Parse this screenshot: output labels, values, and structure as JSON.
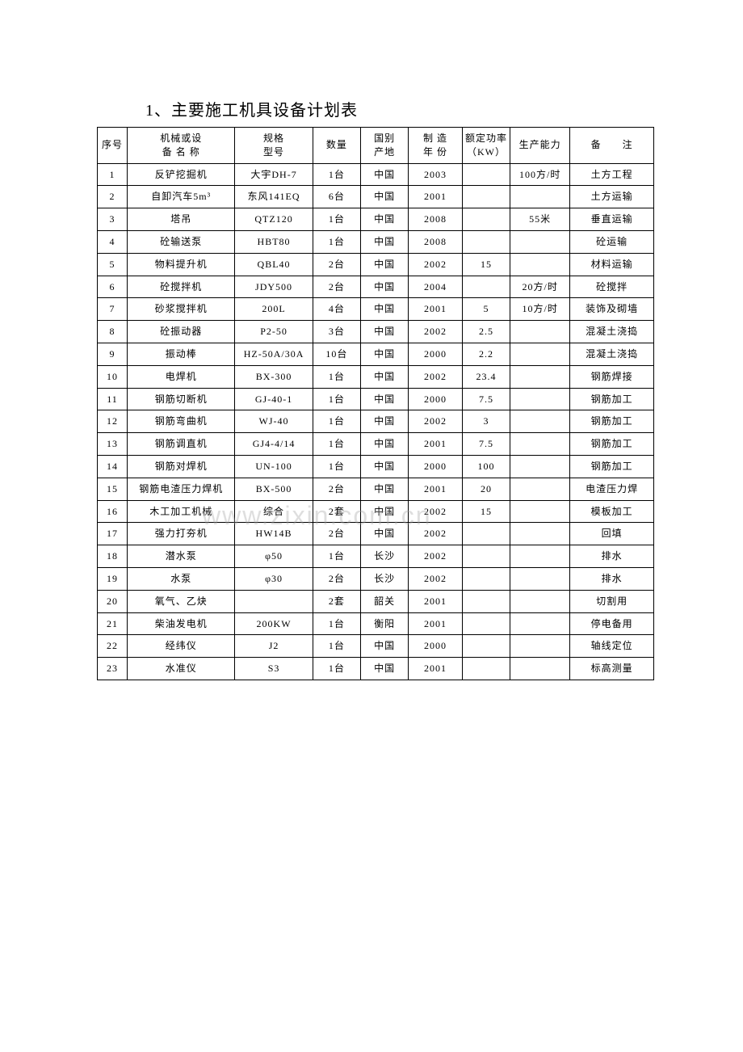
{
  "title": "1、主要施工机具设备计划表",
  "watermark": "www.zixin.com.cn",
  "columns": [
    "序号",
    "机械或设\n备 名 称",
    "规格\n型号",
    "数量",
    "国别\n产地",
    "制 造\n年 份",
    "额定功率\n（KW）",
    "生产能力",
    "备　　注"
  ],
  "rows": [
    {
      "idx": "1",
      "name": "反铲挖掘机",
      "spec": "大宇DH-7",
      "qty": "1台",
      "origin": "中国",
      "year": "2003",
      "power": "",
      "capacity": "100方/时",
      "remark": "土方工程"
    },
    {
      "idx": "2",
      "name": "自卸汽车5m³",
      "spec": "东风141EQ",
      "qty": "6台",
      "origin": "中国",
      "year": "2001",
      "power": "",
      "capacity": "",
      "remark": "土方运输"
    },
    {
      "idx": "3",
      "name": "塔吊",
      "spec": "QTZ120",
      "qty": "1台",
      "origin": "中国",
      "year": "2008",
      "power": "",
      "capacity": "55米",
      "remark": "垂直运输"
    },
    {
      "idx": "4",
      "name": "砼输送泵",
      "spec": "HBT80",
      "qty": "1台",
      "origin": "中国",
      "year": "2008",
      "power": "",
      "capacity": "",
      "remark": "砼运输"
    },
    {
      "idx": "5",
      "name": "物料提升机",
      "spec": "QBL40",
      "qty": "2台",
      "origin": "中国",
      "year": "2002",
      "power": "15",
      "capacity": "",
      "remark": "材料运输"
    },
    {
      "idx": "6",
      "name": "砼搅拌机",
      "spec": "JDY500",
      "qty": "2台",
      "origin": "中国",
      "year": "2004",
      "power": "",
      "capacity": "20方/时",
      "remark": "砼搅拌"
    },
    {
      "idx": "7",
      "name": "砂浆搅拌机",
      "spec": "200L",
      "qty": "4台",
      "origin": "中国",
      "year": "2001",
      "power": "5",
      "capacity": "10方/时",
      "remark": "装饰及砌墙"
    },
    {
      "idx": "8",
      "name": "砼振动器",
      "spec": "P2-50",
      "qty": "3台",
      "origin": "中国",
      "year": "2002",
      "power": "2.5",
      "capacity": "",
      "remark": "混凝土浇捣"
    },
    {
      "idx": "9",
      "name": "振动棒",
      "spec": "HZ-50A/30A",
      "qty": "10台",
      "origin": "中国",
      "year": "2000",
      "power": "2.2",
      "capacity": "",
      "remark": "混凝土浇捣"
    },
    {
      "idx": "10",
      "name": "电焊机",
      "spec": "BX-300",
      "qty": "1台",
      "origin": "中国",
      "year": "2002",
      "power": "23.4",
      "capacity": "",
      "remark": "钢筋焊接"
    },
    {
      "idx": "11",
      "name": "钢筋切断机",
      "spec": "GJ-40-1",
      "qty": "1台",
      "origin": "中国",
      "year": "2000",
      "power": "7.5",
      "capacity": "",
      "remark": "钢筋加工"
    },
    {
      "idx": "12",
      "name": "钢筋弯曲机",
      "spec": "WJ-40",
      "qty": "1台",
      "origin": "中国",
      "year": "2002",
      "power": "3",
      "capacity": "",
      "remark": "钢筋加工"
    },
    {
      "idx": "13",
      "name": "钢筋调直机",
      "spec": "GJ4-4/14",
      "qty": "1台",
      "origin": "中国",
      "year": "2001",
      "power": "7.5",
      "capacity": "",
      "remark": "钢筋加工"
    },
    {
      "idx": "14",
      "name": "钢筋对焊机",
      "spec": "UN-100",
      "qty": "1台",
      "origin": "中国",
      "year": "2000",
      "power": "100",
      "capacity": "",
      "remark": "钢筋加工"
    },
    {
      "idx": "15",
      "name": "钢筋电渣压力焊机",
      "spec": "BX-500",
      "qty": "2台",
      "origin": "中国",
      "year": "2001",
      "power": "20",
      "capacity": "",
      "remark": "电渣压力焊"
    },
    {
      "idx": "16",
      "name": "木工加工机械",
      "spec": "综合",
      "qty": "2套",
      "origin": "中国",
      "year": "2002",
      "power": "15",
      "capacity": "",
      "remark": "模板加工"
    },
    {
      "idx": "17",
      "name": "强力打夯机",
      "spec": "HW14B",
      "qty": "2台",
      "origin": "中国",
      "year": "2002",
      "power": "",
      "capacity": "",
      "remark": "回填"
    },
    {
      "idx": "18",
      "name": "潜水泵",
      "spec": "φ50",
      "qty": "1台",
      "origin": "长沙",
      "year": "2002",
      "power": "",
      "capacity": "",
      "remark": "排水"
    },
    {
      "idx": "19",
      "name": "水泵",
      "spec": "φ30",
      "qty": "2台",
      "origin": "长沙",
      "year": "2002",
      "power": "",
      "capacity": "",
      "remark": "排水"
    },
    {
      "idx": "20",
      "name": "氧气、乙炔",
      "spec": "",
      "qty": "2套",
      "origin": "韶关",
      "year": "2001",
      "power": "",
      "capacity": "",
      "remark": "切割用"
    },
    {
      "idx": "21",
      "name": "柴油发电机",
      "spec": "200KW",
      "qty": "1台",
      "origin": "衡阳",
      "year": "2001",
      "power": "",
      "capacity": "",
      "remark": "停电备用"
    },
    {
      "idx": "22",
      "name": "经纬仪",
      "spec": "J2",
      "qty": "1台",
      "origin": "中国",
      "year": "2000",
      "power": "",
      "capacity": "",
      "remark": "轴线定位"
    },
    {
      "idx": "23",
      "name": "水准仪",
      "spec": "S3",
      "qty": "1台",
      "origin": "中国",
      "year": "2001",
      "power": "",
      "capacity": "",
      "remark": "标高测量"
    }
  ]
}
